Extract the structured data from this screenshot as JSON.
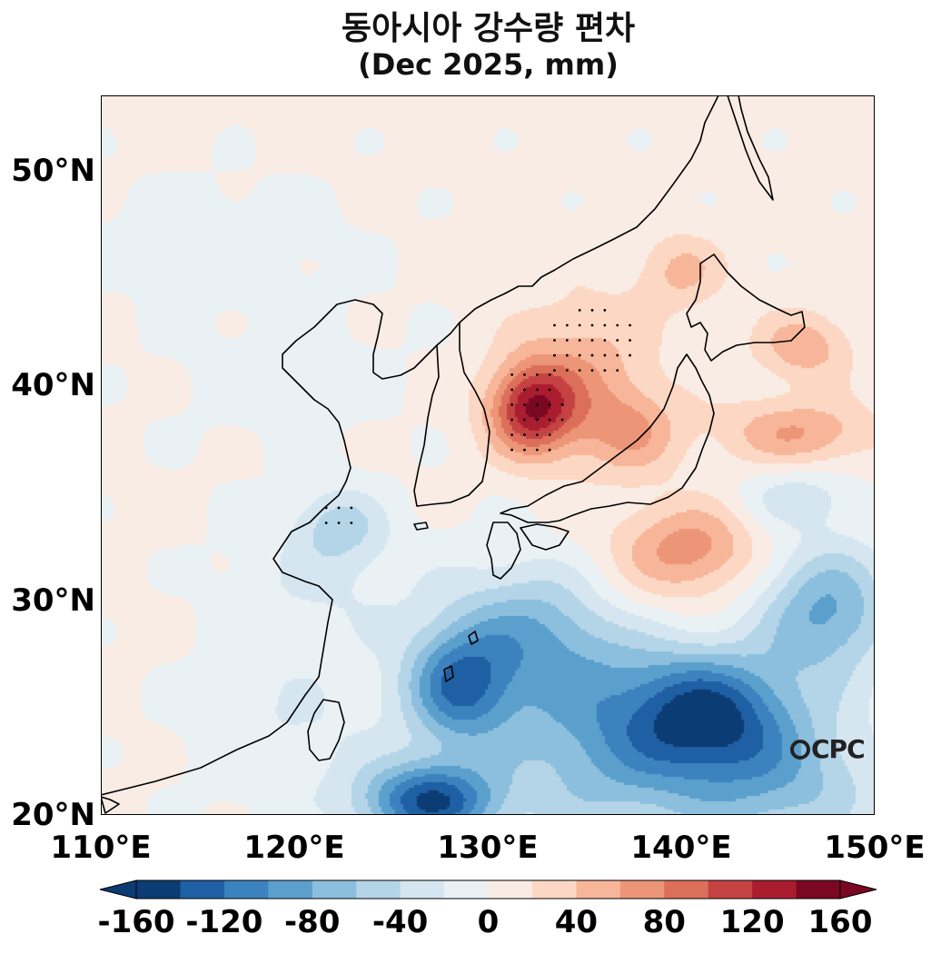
{
  "title": {
    "line1": "동아시아 강수량 편차",
    "line2": "(Dec 2025, mm)"
  },
  "map": {
    "lat_range": [
      20,
      53.5
    ],
    "lon_range": [
      110,
      150
    ],
    "y_ticks": [
      {
        "label": "50°N",
        "lat": 50
      },
      {
        "label": "40°N",
        "lat": 40
      },
      {
        "label": "30°N",
        "lat": 30
      },
      {
        "label": "20°N",
        "lat": 20
      }
    ],
    "x_ticks": [
      {
        "label": "110°E",
        "lon": 110
      },
      {
        "label": "120°E",
        "lon": 120
      },
      {
        "label": "130°E",
        "lon": 130
      },
      {
        "label": "140°E",
        "lon": 140
      },
      {
        "label": "150°E",
        "lon": 150
      }
    ],
    "watermark": "CPC"
  },
  "colorbar": {
    "min": -160,
    "max": 160,
    "step": 20,
    "tick_labels": [
      "-160",
      "-120",
      "-80",
      "-40",
      "0",
      "40",
      "80",
      "120",
      "160"
    ],
    "tick_values": [
      -160,
      -120,
      -80,
      -40,
      0,
      40,
      80,
      120,
      160
    ],
    "colors": [
      "#0b3c73",
      "#1f5fa3",
      "#3c82be",
      "#5b9fcd",
      "#8cbfdd",
      "#b4d5e8",
      "#d5e6f1",
      "#eaf1f5",
      "#f8ece4",
      "#fcd8c4",
      "#f7b699",
      "#ec9677",
      "#dc6f5a",
      "#c54243",
      "#a91d2f",
      "#7a0822"
    ],
    "under_color": "#0b3c73",
    "over_color": "#7a0822"
  },
  "chart_data": {
    "type": "heatmap",
    "title": "동아시아 강수량 편차 (Dec 2025, mm)",
    "units": "mm",
    "lon_range": [
      110,
      150
    ],
    "lat_range": [
      20,
      53.5
    ],
    "background_anomaly": 5,
    "anomaly_centers": [
      {
        "lon": 132.3,
        "lat": 38.9,
        "value": 120,
        "sx": 1.6,
        "sy": 1.5
      },
      {
        "lon": 135.0,
        "lat": 40.5,
        "value": 45,
        "sx": 2.6,
        "sy": 2.6
      },
      {
        "lon": 137.5,
        "lat": 37.8,
        "value": 45,
        "sx": 1.8,
        "sy": 1.4
      },
      {
        "lon": 140.0,
        "lat": 45.3,
        "value": 40,
        "sx": 1.5,
        "sy": 1.2
      },
      {
        "lon": 146.0,
        "lat": 37.8,
        "value": 55,
        "sx": 2.8,
        "sy": 1.1
      },
      {
        "lon": 146.3,
        "lat": 41.8,
        "value": 50,
        "sx": 1.7,
        "sy": 1.1
      },
      {
        "lon": 140.5,
        "lat": 32.5,
        "value": 55,
        "sx": 2.3,
        "sy": 1.4
      },
      {
        "lon": 136.5,
        "lat": 31.0,
        "value": 25,
        "sx": 5.0,
        "sy": 2.0
      },
      {
        "lon": 146.0,
        "lat": 34.8,
        "value": -35,
        "sx": 2.2,
        "sy": 1.0
      },
      {
        "lon": 122.3,
        "lat": 33.5,
        "value": -45,
        "sx": 1.6,
        "sy": 1.2
      },
      {
        "lon": 122.0,
        "lat": 31.0,
        "value": -25,
        "sx": 4.0,
        "sy": 2.2
      },
      {
        "lon": 128.5,
        "lat": 26.0,
        "value": -110,
        "sx": 2.0,
        "sy": 2.0
      },
      {
        "lon": 132.5,
        "lat": 29.0,
        "value": -75,
        "sx": 3.0,
        "sy": 2.5
      },
      {
        "lon": 141.5,
        "lat": 24.8,
        "value": -115,
        "sx": 3.0,
        "sy": 2.0
      },
      {
        "lon": 147.5,
        "lat": 29.5,
        "value": -90,
        "sx": 2.5,
        "sy": 2.2
      },
      {
        "lon": 127.0,
        "lat": 20.6,
        "value": -140,
        "sx": 2.5,
        "sy": 1.3
      },
      {
        "lon": 136.0,
        "lat": 23.5,
        "value": -80,
        "sx": 4.0,
        "sy": 3.5
      },
      {
        "lon": 145.0,
        "lat": 21.5,
        "value": -70,
        "sx": 4.0,
        "sy": 2.5
      },
      {
        "lon": 120.0,
        "lat": 24.0,
        "value": -25,
        "sx": 4.0,
        "sy": 3.0
      },
      {
        "lon": 116.0,
        "lat": 47.0,
        "value": -15,
        "sx": 5.0,
        "sy": 2.0
      },
      {
        "lon": 119.5,
        "lat": 40.5,
        "value": -12,
        "sx": 5.0,
        "sy": 3.0
      }
    ],
    "stipple_regions": [
      {
        "lon": 132.3,
        "lat": 38.7,
        "rx": 1.7,
        "ry": 2.4
      },
      {
        "lon": 135.3,
        "lat": 41.8,
        "rx": 2.5,
        "ry": 1.8
      },
      {
        "lon": 122.2,
        "lat": 33.8,
        "rx": 1.2,
        "ry": 0.9
      }
    ]
  }
}
